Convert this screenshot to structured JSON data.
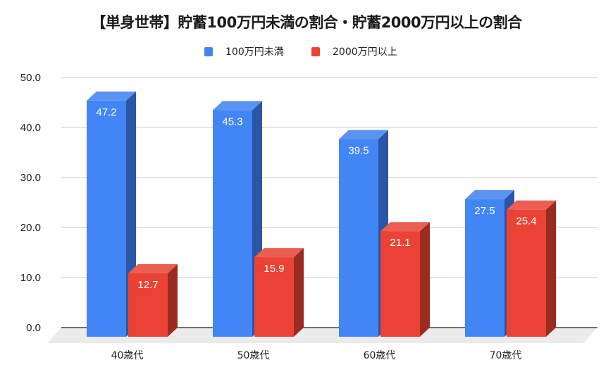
{
  "chart_data": {
    "type": "bar",
    "title": "【単身世帯】貯蓄100万円未満の割合・貯蓄2000万円以上の割合",
    "categories": [
      "40歳代",
      "50歳代",
      "60歳代",
      "70歳代"
    ],
    "series": [
      {
        "name": "100万円未満",
        "values": [
          47.2,
          45.3,
          39.5,
          27.5
        ],
        "color": "#4285F4",
        "side_color": "#2A56A8",
        "top_color": "#5B93F0"
      },
      {
        "name": "2000万円以上",
        "values": [
          12.7,
          15.9,
          21.1,
          25.4
        ],
        "color": "#EA4335",
        "side_color": "#9A2B20",
        "top_color": "#EC5E52"
      }
    ],
    "xlabel": "",
    "ylabel": "",
    "ylim": [
      0,
      50
    ],
    "yticks": [
      "0.0",
      "10.0",
      "20.0",
      "30.0",
      "40.0",
      "50.0"
    ],
    "grid": true,
    "legend_position": "top",
    "style": "3d-bar",
    "data_labels": true
  },
  "legend": {
    "items": [
      {
        "label": "100万円未満",
        "color": "#4285F4"
      },
      {
        "label": "2000万円以上",
        "color": "#EA4335"
      }
    ]
  }
}
